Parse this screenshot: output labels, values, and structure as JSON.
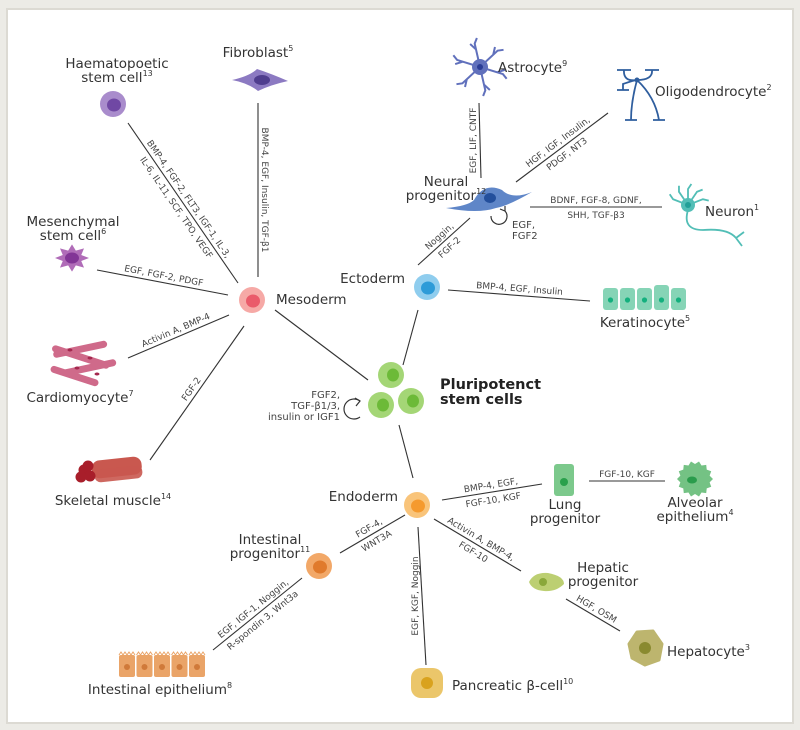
{
  "colors": {
    "line": "#333333",
    "frame": "#dcdad3",
    "text": "#333333"
  },
  "nodes": [
    {
      "id": "haematopoetic",
      "lines": [
        "Haematopoetic",
        "stem cell"
      ],
      "sup": "13",
      "icon": "haematopoetic-cell-icon",
      "fill": "#a98ccc",
      "nucleus": "#7048a4"
    },
    {
      "id": "fibroblast",
      "lines": [
        "Fibroblast"
      ],
      "sup": "5",
      "icon": "fibroblast-icon",
      "fill": "#8c7ac2",
      "nucleus": "#4f3d8e"
    },
    {
      "id": "mesenchymal",
      "lines": [
        "Mesenchymal",
        "stem cell"
      ],
      "sup": "6",
      "icon": "mesenchymal-cell-icon",
      "fill": "#b06cb8",
      "nucleus": "#823596"
    },
    {
      "id": "cardiomyocyte",
      "lines": [
        "Cardiomyocyte"
      ],
      "sup": "7",
      "icon": "cardiomyocyte-icon",
      "fill": "#cf6a8a",
      "nucleus": "#a4284e"
    },
    {
      "id": "skeletal",
      "lines": [
        "Skeletal muscle"
      ],
      "sup": "14",
      "icon": "skeletal-muscle-icon",
      "fill": "#c9584f",
      "nucleus": "#a81e2a"
    },
    {
      "id": "mesoderm",
      "lines": [
        "Mesoderm"
      ],
      "sup": "",
      "icon": "mesoderm-cell-icon",
      "fill": "#f6a9a6",
      "nucleus": "#ea5b6a"
    },
    {
      "id": "ectoderm",
      "lines": [
        "Ectoderm"
      ],
      "sup": "",
      "icon": "ectoderm-cell-icon",
      "fill": "#8fcdee",
      "nucleus": "#2d9bd8"
    },
    {
      "id": "neural",
      "lines": [
        "Neural",
        "progenitor"
      ],
      "sup": "12",
      "icon": "neural-progenitor-icon",
      "fill": "#5f86c8",
      "nucleus": "#234f9c"
    },
    {
      "id": "astrocyte",
      "lines": [
        "Astrocyte"
      ],
      "sup": "9",
      "icon": "astrocyte-icon",
      "fill": "#6070bc",
      "nucleus": "#2a3c96"
    },
    {
      "id": "oligodendrocyte",
      "lines": [
        "Oligodendrocyte"
      ],
      "sup": "2",
      "icon": "oligodendrocyte-icon",
      "fill": "#2f5e9e",
      "nucleus": "#2f5e9e"
    },
    {
      "id": "neuron",
      "lines": [
        "Neuron"
      ],
      "sup": "1",
      "icon": "neuron-icon",
      "fill": "#52beb6",
      "nucleus": "#22a098"
    },
    {
      "id": "keratinocyte",
      "lines": [
        "Keratinocyte"
      ],
      "sup": "5",
      "icon": "keratinocyte-icon",
      "fill": "#86d4b6",
      "nucleus": "#14b07e"
    },
    {
      "id": "pluripotent",
      "lines": [
        "Pluripotenct",
        "stem cells"
      ],
      "sup": "",
      "icon": "pluripotent-stem-cells-icon",
      "fill": "#a4d676",
      "nucleus": "#6cba38",
      "bold": true
    },
    {
      "id": "endoderm",
      "lines": [
        "Endoderm"
      ],
      "sup": "",
      "icon": "endoderm-cell-icon",
      "fill": "#f9c47a",
      "nucleus": "#f59a2e"
    },
    {
      "id": "lung",
      "lines": [
        "Lung",
        "progenitor"
      ],
      "sup": "",
      "icon": "lung-progenitor-icon",
      "fill": "#7cc98c",
      "nucleus": "#2aa04c"
    },
    {
      "id": "alveolar",
      "lines": [
        "Alveolar",
        "epithelium"
      ],
      "sup": "4",
      "icon": "alveolar-epithelium-icon",
      "fill": "#74c284",
      "nucleus": "#2a9c4c"
    },
    {
      "id": "hepatic",
      "lines": [
        "Hepatic",
        "progenitor"
      ],
      "sup": "",
      "icon": "hepatic-progenitor-icon",
      "fill": "#bccf72",
      "nucleus": "#8aa83a"
    },
    {
      "id": "hepatocyte",
      "lines": [
        "Hepatocyte"
      ],
      "sup": "3",
      "icon": "hepatocyte-icon",
      "fill": "#bdb56e",
      "nucleus": "#8a8a30"
    },
    {
      "id": "pancreatic",
      "lines": [
        "Pancreatic β-cell"
      ],
      "sup": "10",
      "icon": "pancreatic-beta-cell-icon",
      "fill": "#ebc66a",
      "nucleus": "#d9a21e"
    },
    {
      "id": "intprog",
      "lines": [
        "Intestinal",
        "progenitor"
      ],
      "sup": "11",
      "icon": "intestinal-progenitor-icon",
      "fill": "#f2a868",
      "nucleus": "#e07a2c"
    },
    {
      "id": "intepith",
      "lines": [
        "Intestinal epithelium"
      ],
      "sup": "8",
      "icon": "intestinal-epithelium-icon",
      "fill": "#eaa468",
      "nucleus": "#d07a3a"
    }
  ],
  "edges": [
    {
      "from": "mesoderm",
      "to": "haematopoetic",
      "labels": [
        "BMP-4, FGF-2, FLT3, IGF-1, IL-3,",
        "IL-6, IL-11, SCF, TPO, VEGF"
      ]
    },
    {
      "from": "mesoderm",
      "to": "fibroblast",
      "labels": [
        "BMP-4, EGF, Insulin, TGF-β1"
      ]
    },
    {
      "from": "mesoderm",
      "to": "mesenchymal",
      "labels": [
        "EGF, FGF-2, PDGF"
      ]
    },
    {
      "from": "mesoderm",
      "to": "cardiomyocyte",
      "labels": [
        "Activin A, BMP-4"
      ]
    },
    {
      "from": "mesoderm",
      "to": "skeletal",
      "labels": [
        "FGF-2"
      ]
    },
    {
      "from": "pluripotent",
      "to": "mesoderm",
      "labels": []
    },
    {
      "from": "pluripotent",
      "to": "ectoderm",
      "labels": []
    },
    {
      "from": "pluripotent",
      "to": "endoderm",
      "labels": []
    },
    {
      "from": "ectoderm",
      "to": "neural",
      "labels": [
        "Noggin,",
        "FGF-2"
      ]
    },
    {
      "from": "neural",
      "to": "astrocyte",
      "labels": [
        "EGF, LIF, CNTF"
      ]
    },
    {
      "from": "neural",
      "to": "oligodendrocyte",
      "labels": [
        "HGF, IGF, Insulin,",
        "PDGF, NT3"
      ]
    },
    {
      "from": "neural",
      "to": "neuron",
      "labels": [
        "BDNF, FGF-8, GDNF,",
        "SHH, TGF-β3"
      ]
    },
    {
      "from": "ectoderm",
      "to": "keratinocyte",
      "labels": [
        "BMP-4, EGF, Insulin"
      ]
    },
    {
      "from": "endoderm",
      "to": "lung",
      "labels": [
        "BMP-4, EGF,",
        "FGF-10, KGF"
      ]
    },
    {
      "from": "lung",
      "to": "alveolar",
      "labels": [
        "FGF-10, KGF"
      ]
    },
    {
      "from": "endoderm",
      "to": "hepatic",
      "labels": [
        "Activin A, BMP-4,",
        "FGF-10"
      ]
    },
    {
      "from": "hepatic",
      "to": "hepatocyte",
      "labels": [
        "HGF, OSM"
      ]
    },
    {
      "from": "endoderm",
      "to": "pancreatic",
      "labels": [
        "EGF, KGF, Noggin"
      ]
    },
    {
      "from": "endoderm",
      "to": "intprog",
      "labels": [
        "FGF-4,",
        "WNT3A"
      ]
    },
    {
      "from": "intprog",
      "to": "intepith",
      "labels": [
        "EGF, IGF-1, Noggin,",
        "R-spondin 3, Wnt3a"
      ]
    }
  ],
  "self_renewal": [
    {
      "node": "neural",
      "icon": "self-renewal-arrow-icon",
      "labels": [
        "EGF,",
        "FGF2"
      ]
    },
    {
      "node": "pluripotent",
      "icon": "self-renewal-arrow-icon",
      "labels": [
        "FGF2,",
        "TGF-β1/3,",
        "insulin or IGF1"
      ]
    }
  ]
}
